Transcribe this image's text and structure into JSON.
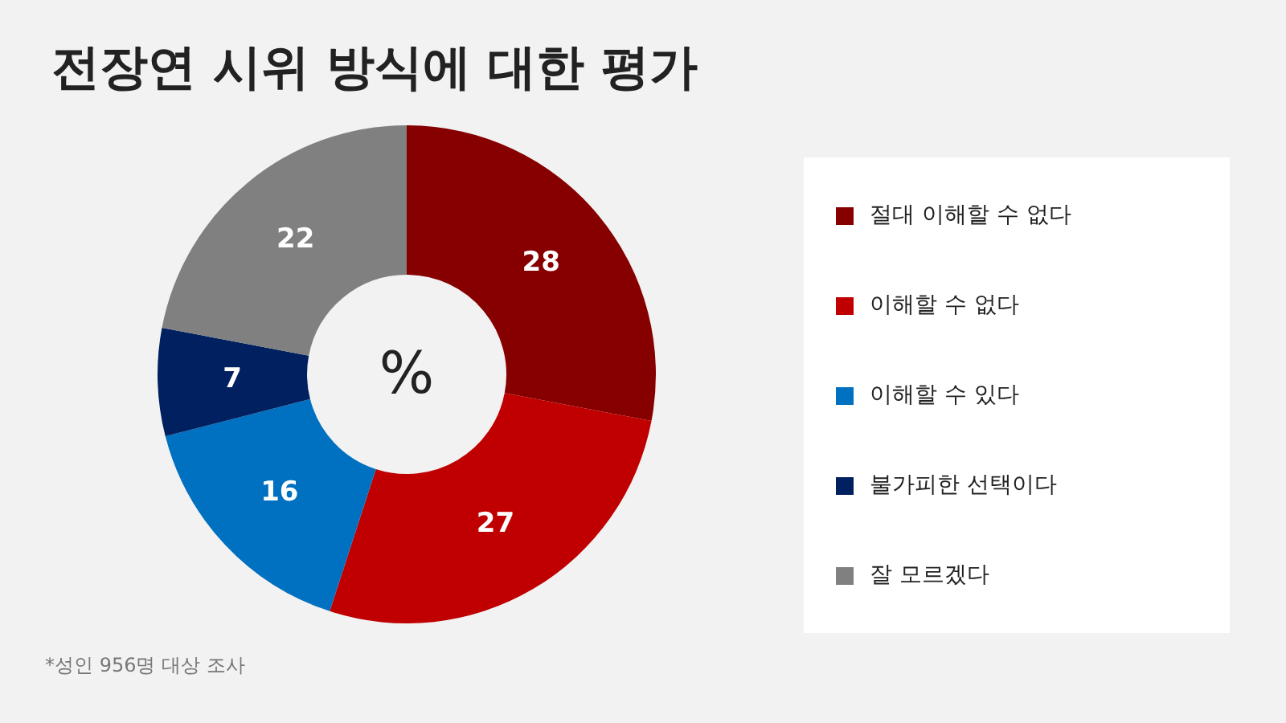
{
  "chart_data": {
    "type": "donut",
    "title": "전장연 시위 방식에 대한 평가",
    "categories": [
      "절대 이해할 수 없다",
      "이해할 수 없다",
      "이해할 수 있다",
      "불가피한 선택이다",
      "잘 모르겠다"
    ],
    "values": [
      28,
      27,
      16,
      7,
      22
    ],
    "colors": [
      "#870000",
      "#c00000",
      "#0070c0",
      "#002060",
      "#808080"
    ],
    "data_labels": true,
    "legend": "right",
    "annotations": [
      "%",
      "*성인 956명 대상 조사"
    ]
  }
}
